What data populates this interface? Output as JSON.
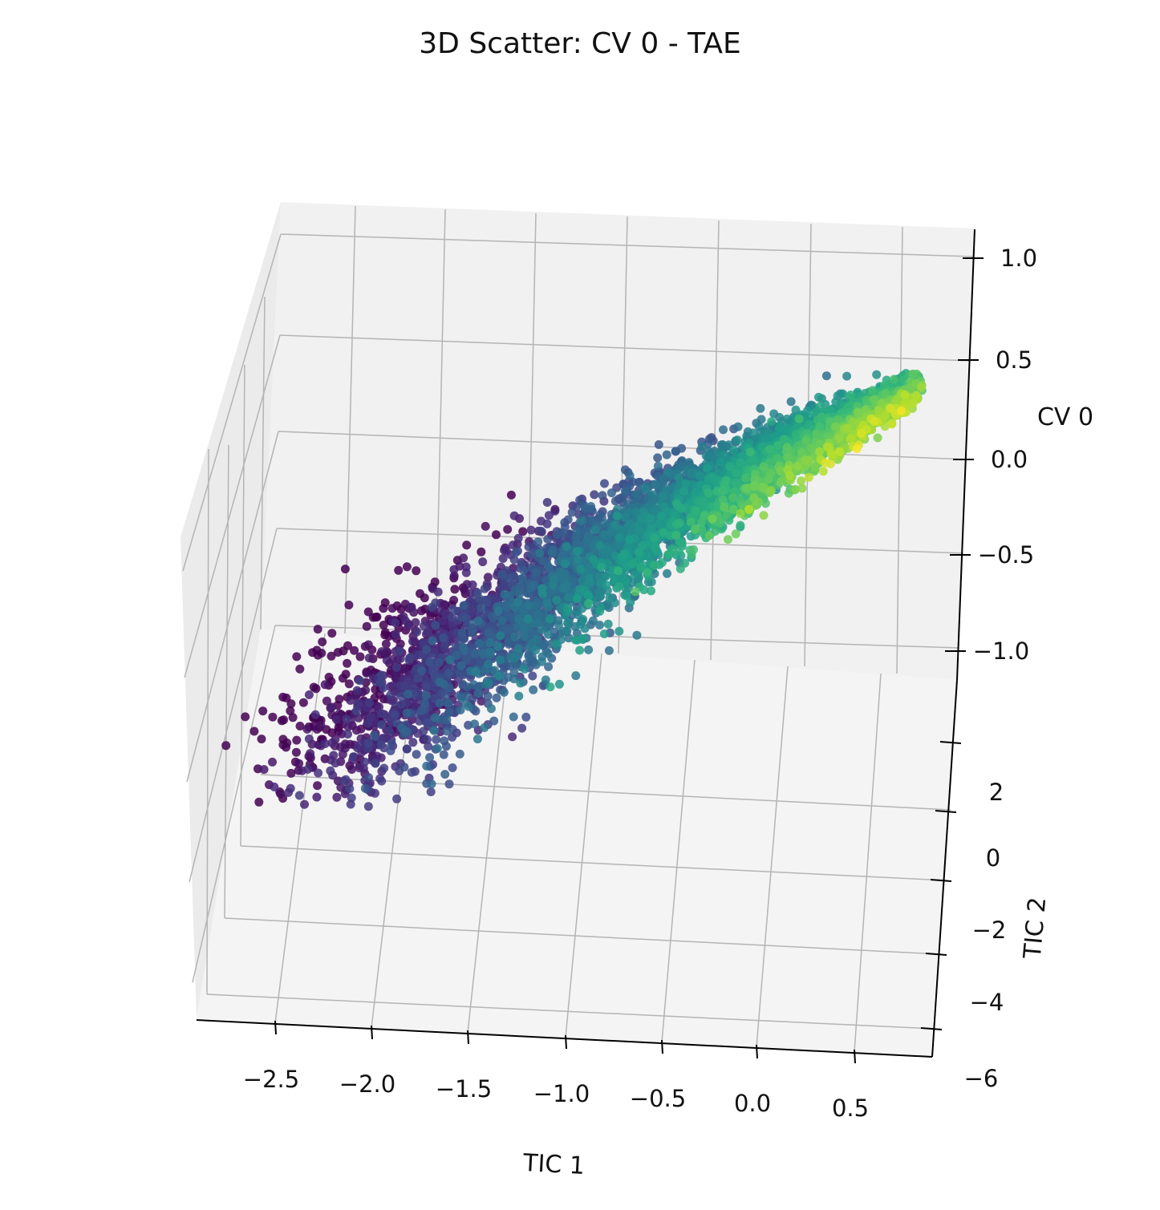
{
  "chart_data": {
    "type": "scatter",
    "title": "3D Scatter: CV 0 - TAE",
    "xlabel": "TIC 1",
    "ylabel": "TIC 2",
    "zlabel": "CV 0",
    "x_ticks": [
      "−2.5",
      "−2.0",
      "−1.5",
      "−1.0",
      "−0.5",
      "0.0",
      "0.5"
    ],
    "y_ticks": [
      "2",
      "0",
      "−2",
      "−4",
      "−6"
    ],
    "z_ticks": [
      "1.0",
      "0.5",
      "0.0",
      "−0.5",
      "−1.0"
    ],
    "colormap": "viridis",
    "color_by": "CV 0",
    "grid": true,
    "point_cloud": {
      "description_axis": "points run from low TIC 1 / low CV 0 (purple) to high TIC 1 / high CV 0 (yellow)",
      "tic1_range": [
        -2.8,
        0.75
      ],
      "cv0_range": [
        -1.0,
        0.45
      ]
    }
  }
}
